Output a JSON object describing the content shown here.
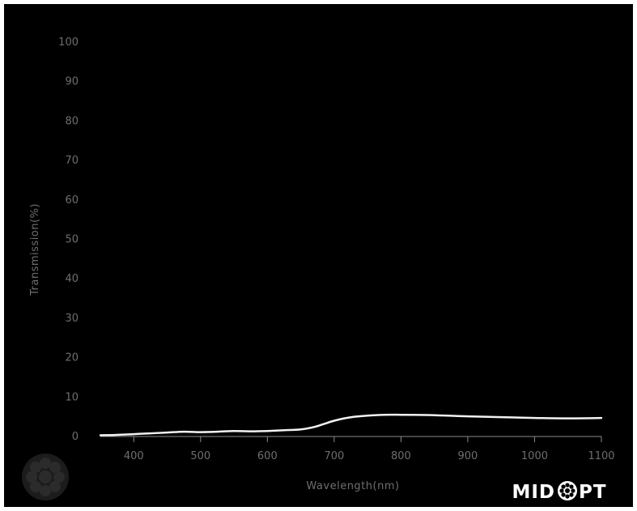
{
  "chart_data": {
    "type": "line",
    "xlabel": "Wavelength(nm)",
    "ylabel": "Transmission(%)",
    "xlim": [
      350,
      1100
    ],
    "ylim": [
      0,
      100
    ],
    "x_ticks": [
      "400",
      "500",
      "600",
      "700",
      "800",
      "900",
      "1000",
      "1100"
    ],
    "y_ticks": [
      "0",
      "10",
      "20",
      "30",
      "40",
      "50",
      "60",
      "70",
      "80",
      "90",
      "100"
    ],
    "grid": false,
    "series": [
      {
        "color": "#f2f2f2",
        "x": [
          350,
          375,
          400,
          425,
          450,
          475,
          500,
          525,
          550,
          575,
          600,
          625,
          650,
          670,
          685,
          700,
          715,
          730,
          750,
          775,
          800,
          850,
          900,
          950,
          1000,
          1050,
          1100
        ],
        "values": [
          0.1,
          0.2,
          0.4,
          0.6,
          0.8,
          1.0,
          0.9,
          1.0,
          1.2,
          1.1,
          1.2,
          1.4,
          1.6,
          2.2,
          3.0,
          3.8,
          4.4,
          4.8,
          5.1,
          5.3,
          5.3,
          5.2,
          4.9,
          4.7,
          4.5,
          4.4,
          4.5
        ]
      }
    ]
  },
  "logo": {
    "text_left": "MID",
    "text_right": "PT"
  }
}
